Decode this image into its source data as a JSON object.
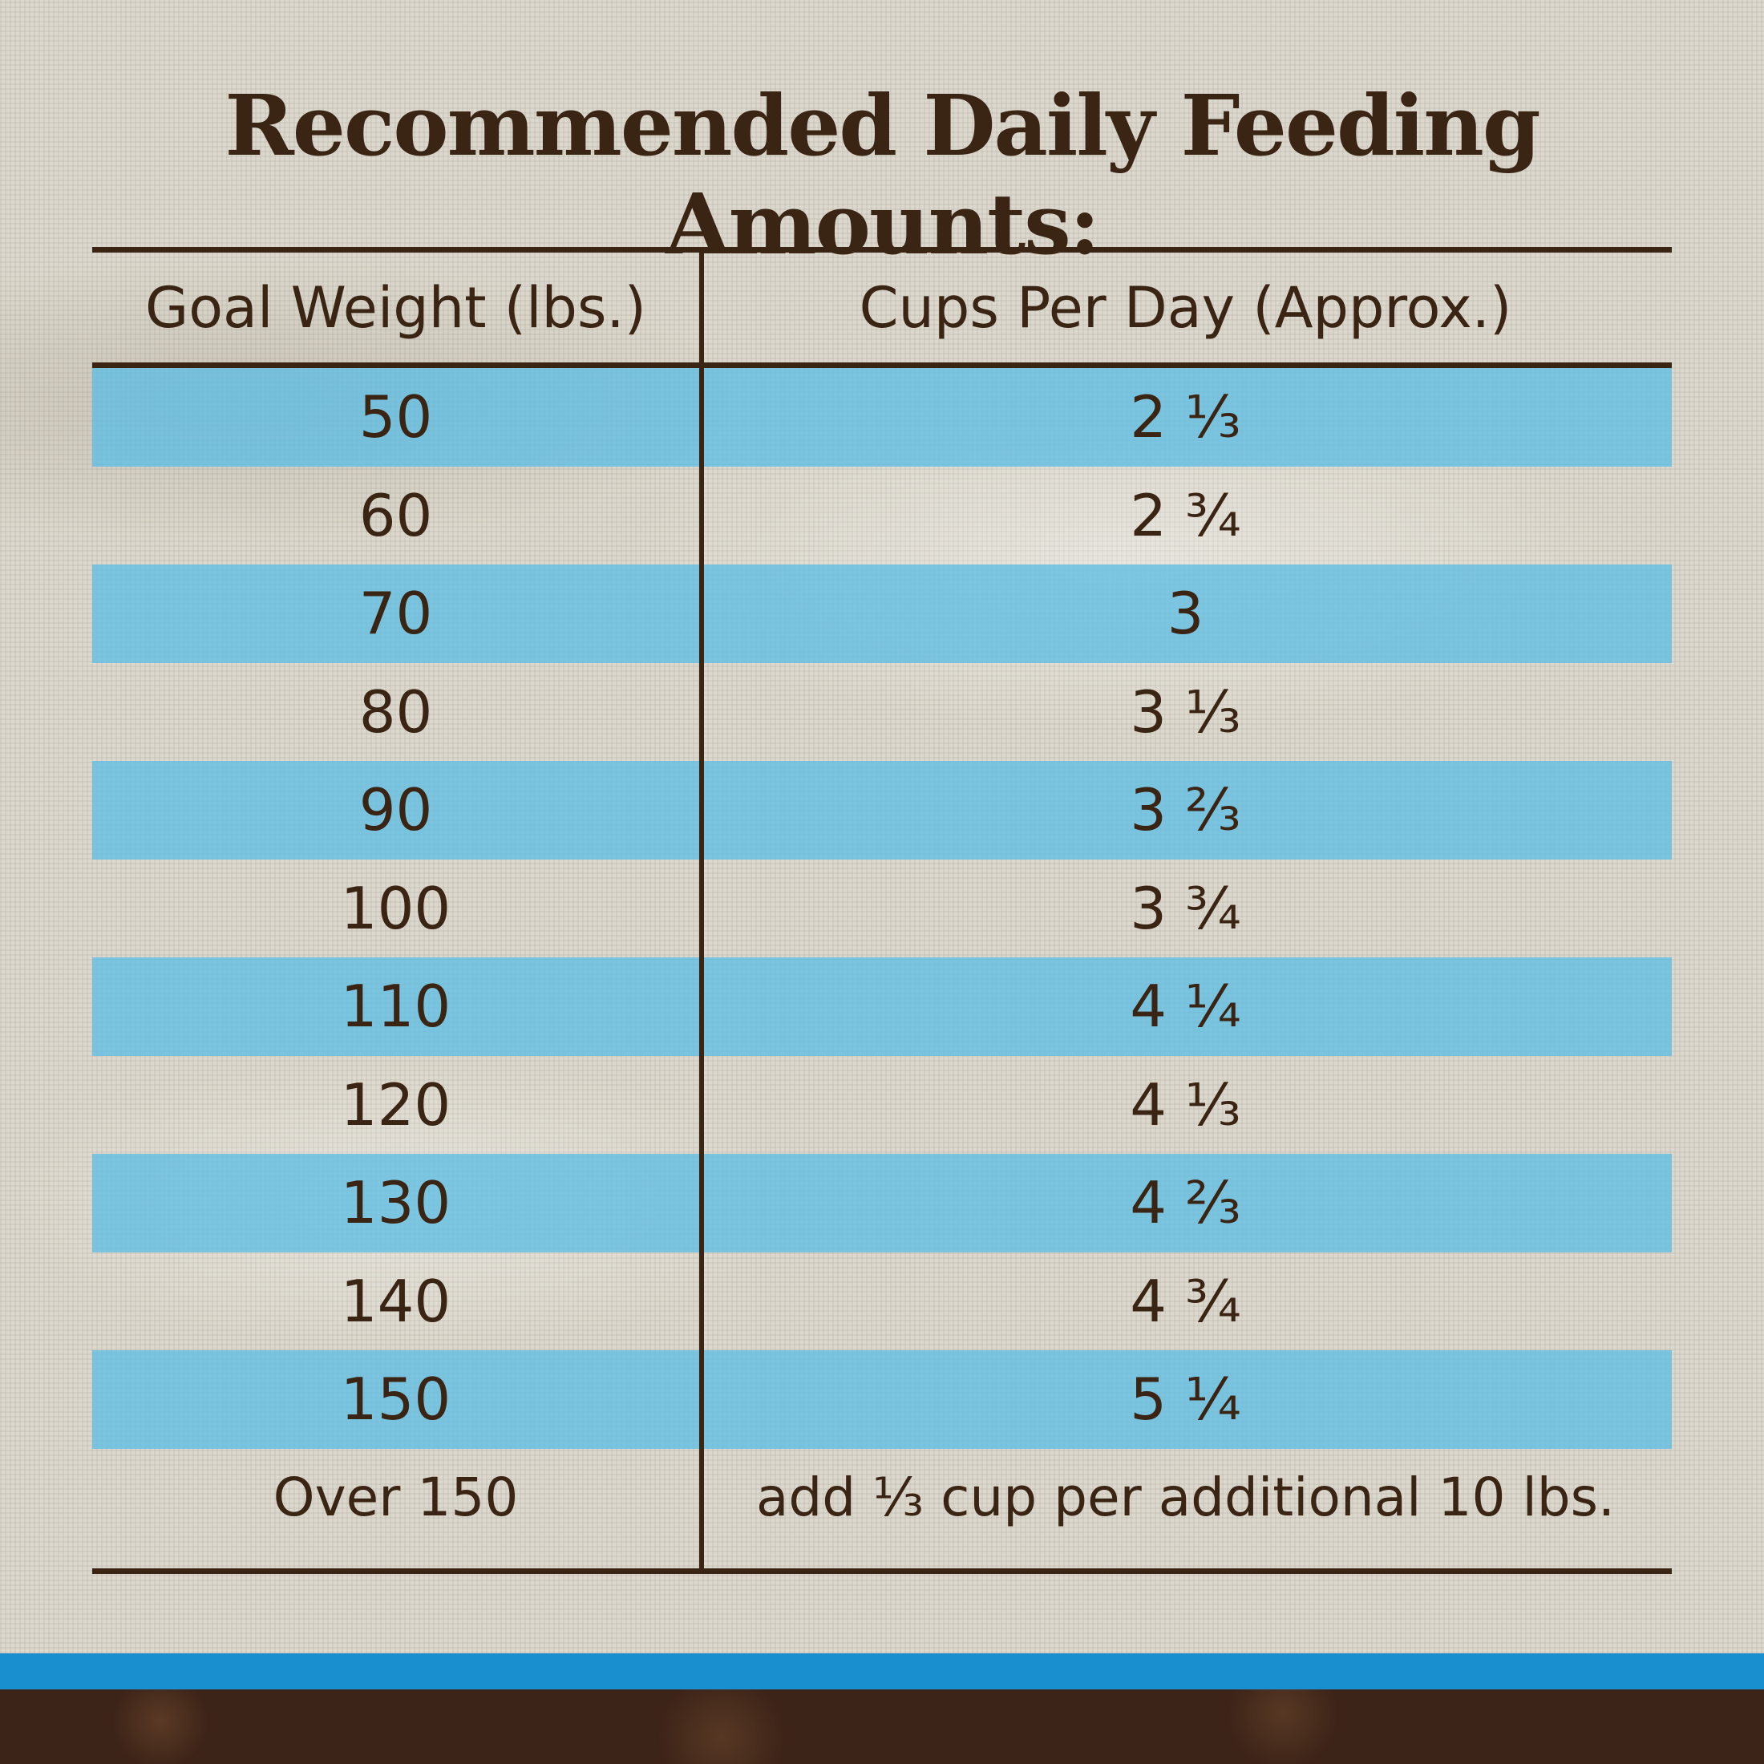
{
  "title": "Recommended Daily Feeding Amounts:",
  "table": {
    "headers": [
      "Goal Weight (lbs.)",
      "Cups Per Day (Approx.)"
    ],
    "rows": [
      {
        "weight": "50",
        "cups": "2 ⅓"
      },
      {
        "weight": "60",
        "cups": "2 ¾"
      },
      {
        "weight": "70",
        "cups": "3"
      },
      {
        "weight": "80",
        "cups": "3 ⅓"
      },
      {
        "weight": "90",
        "cups": "3 ⅔"
      },
      {
        "weight": "100",
        "cups": "3 ¾"
      },
      {
        "weight": "110",
        "cups": "4 ¼"
      },
      {
        "weight": "120",
        "cups": "4 ⅓"
      },
      {
        "weight": "130",
        "cups": "4 ⅔"
      },
      {
        "weight": "140",
        "cups": "4 ¾"
      },
      {
        "weight": "150",
        "cups": "5 ¼"
      },
      {
        "weight": "Over 150",
        "cups": "add ⅓ cup per additional 10 lbs."
      }
    ]
  },
  "colors": {
    "text": "#3a2414",
    "row_stripe": "#5fbee4",
    "background": "#dcd8cd",
    "footer_blue": "#1a8fd0",
    "footer_soil": "#3d2418"
  }
}
